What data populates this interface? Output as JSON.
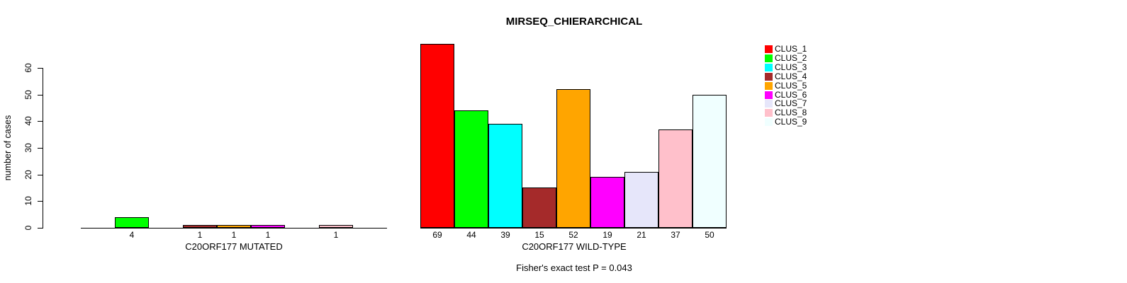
{
  "title": "MIRSEQ_CHIERARCHICAL",
  "chart_data": {
    "type": "bar",
    "title": "MIRSEQ_CHIERARCHICAL",
    "ylabel": "number of cases",
    "ylim": [
      0,
      60
    ],
    "yticks": [
      0,
      10,
      20,
      30,
      40,
      50,
      60
    ],
    "grid": false,
    "categories": [
      "CLUS_1",
      "CLUS_2",
      "CLUS_3",
      "CLUS_4",
      "CLUS_5",
      "CLUS_6",
      "CLUS_7",
      "CLUS_8",
      "CLUS_9"
    ],
    "legend_position": "right",
    "legend": [
      {
        "label": "CLUS_1",
        "color": "#ff0000"
      },
      {
        "label": "CLUS_2",
        "color": "#00ff00"
      },
      {
        "label": "CLUS_3",
        "color": "#00ffff"
      },
      {
        "label": "CLUS_4",
        "color": "#a52a2a"
      },
      {
        "label": "CLUS_5",
        "color": "#ffa500"
      },
      {
        "label": "CLUS_6",
        "color": "#ff00ff"
      },
      {
        "label": "CLUS_7",
        "color": "#e6e6fa"
      },
      {
        "label": "CLUS_8",
        "color": "#ffc0cb"
      },
      {
        "label": "CLUS_9",
        "color": "#f0ffff"
      }
    ],
    "panels": [
      {
        "xlabel": "C20ORF177 MUTATED",
        "values": [
          0,
          4,
          0,
          1,
          1,
          1,
          0,
          1,
          0
        ]
      },
      {
        "xlabel": "C20ORF177 WILD-TYPE",
        "values": [
          69,
          44,
          39,
          15,
          52,
          19,
          21,
          37,
          50
        ]
      }
    ],
    "annotation": "Fisher's exact test P = 0.043"
  }
}
